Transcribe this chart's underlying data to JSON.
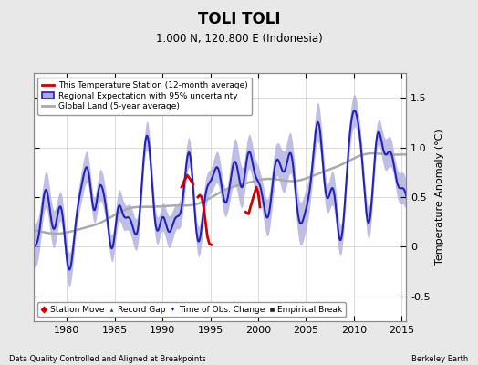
{
  "title": "TOLI TOLI",
  "subtitle": "1.000 N, 120.800 E (Indonesia)",
  "xlabel_left": "Data Quality Controlled and Aligned at Breakpoints",
  "xlabel_right": "Berkeley Earth",
  "ylabel": "Temperature Anomaly (°C)",
  "xlim": [
    1976.5,
    2015.5
  ],
  "ylim": [
    -0.75,
    1.75
  ],
  "yticks": [
    -0.5,
    0.0,
    0.5,
    1.0,
    1.5
  ],
  "xticks": [
    1980,
    1985,
    1990,
    1995,
    2000,
    2005,
    2010,
    2015
  ],
  "bg_color": "#e8e8e8",
  "plot_bg_color": "#ffffff",
  "regional_color": "#2222bb",
  "regional_fill_color": "#aaaadd",
  "global_color": "#aaaaaa",
  "station_color": "#cc0000",
  "time_obs_marker_color": "#0000cc",
  "station_move_color": "#cc0000",
  "record_gap_color": "#006600",
  "empirical_break_color": "#222222"
}
